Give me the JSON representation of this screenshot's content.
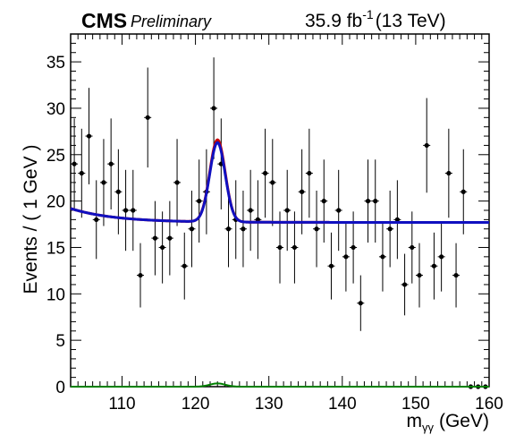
{
  "chart_data": {
    "type": "scatter",
    "header": {
      "experiment": "CMS",
      "status": "Preliminary",
      "lumi_value": "35.9 fb",
      "lumi_exp": "-1",
      "energy": "(13 TeV)"
    },
    "xlabel_main": "m",
    "xlabel_sub": "γγ",
    "xlabel_unit": "(GeV)",
    "ylabel": "Events / ( 1 GeV )",
    "xlim": [
      103,
      160
    ],
    "ylim": [
      0,
      38
    ],
    "xticks": [
      110,
      120,
      130,
      140,
      150,
      160
    ],
    "yticks": [
      0,
      5,
      10,
      15,
      20,
      25,
      30,
      35
    ],
    "grid": false,
    "series": [
      {
        "kind": "data_points",
        "x": [
          103.5,
          104.5,
          105.5,
          106.5,
          107.5,
          108.5,
          109.5,
          110.5,
          111.5,
          112.5,
          113.5,
          114.5,
          115.5,
          116.5,
          117.5,
          118.5,
          119.5,
          120.5,
          121.5,
          122.5,
          123.5,
          124.5,
          125.5,
          126.5,
          127.5,
          128.5,
          129.5,
          130.5,
          131.5,
          132.5,
          133.5,
          134.5,
          135.5,
          136.5,
          137.5,
          138.5,
          139.5,
          140.5,
          141.5,
          142.5,
          143.5,
          144.5,
          145.5,
          146.5,
          147.5,
          148.5,
          149.5,
          150.5,
          151.5,
          152.5,
          153.5,
          154.5,
          155.5,
          156.5,
          157.5,
          158.5,
          159.5
        ],
        "y": [
          24,
          23,
          27,
          18,
          22,
          24,
          21,
          19,
          19,
          12,
          29,
          16,
          15,
          16,
          22,
          13,
          17,
          20,
          21,
          30,
          24,
          17,
          18,
          17,
          19,
          18,
          23,
          22,
          15,
          19,
          15,
          21,
          23,
          17,
          20,
          13,
          19,
          14,
          15,
          9,
          20,
          20,
          14,
          17,
          18,
          11,
          15,
          12,
          26,
          13,
          14,
          23,
          12,
          21,
          0,
          0,
          0
        ]
      },
      {
        "kind": "fit_curve",
        "color": "#cc0000",
        "background_at_103": 19.2,
        "background_at_160": 17.7,
        "peak_mass": 123,
        "peak_height": 26.6
      },
      {
        "kind": "fit_curve",
        "color": "#1010c0",
        "background_at_103": 19.2,
        "background_at_160": 17.7,
        "peak_mass": 123,
        "peak_height": 26.3
      },
      {
        "kind": "signal_curve",
        "color": "#008000",
        "peak_mass": 123,
        "peak_height": 0.35
      }
    ]
  }
}
